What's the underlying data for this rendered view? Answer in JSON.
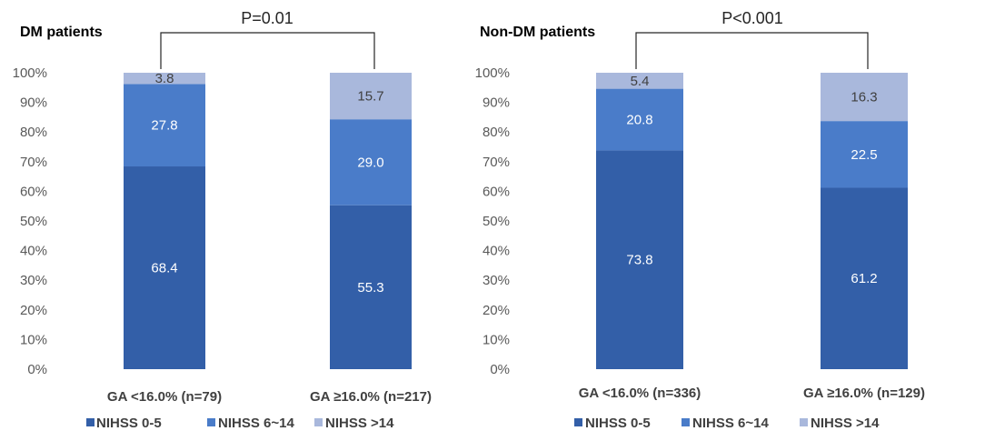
{
  "chart_data": [
    {
      "type": "bar",
      "stacked": true,
      "title": "DM patients",
      "annotation": "P=0.01",
      "categories": [
        "GA <16.0% (n=79)",
        "GA ≥16.0% (n=217)"
      ],
      "series": [
        {
          "name": "NIHSS 0-5",
          "values": [
            68.4,
            55.3
          ],
          "color": "#335fa8"
        },
        {
          "name": "NIHSS 6~14",
          "values": [
            27.8,
            29.0
          ],
          "color": "#4a7cc9"
        },
        {
          "name": "NIHSS >14",
          "values": [
            3.8,
            15.7
          ],
          "color": "#a9b8dc"
        }
      ],
      "ylim": [
        0,
        100
      ],
      "yticks": [
        "0%",
        "10%",
        "20%",
        "30%",
        "40%",
        "50%",
        "60%",
        "70%",
        "80%",
        "90%",
        "100%"
      ],
      "legend_position": "bottom"
    },
    {
      "type": "bar",
      "stacked": true,
      "title": "Non-DM patients",
      "annotation": "P<0.001",
      "categories": [
        "GA <16.0% (n=336)",
        "GA ≥16.0% (n=129)"
      ],
      "series": [
        {
          "name": "NIHSS 0-5",
          "values": [
            73.8,
            61.2
          ],
          "color": "#335fa8"
        },
        {
          "name": "NIHSS 6~14",
          "values": [
            20.8,
            22.5
          ],
          "color": "#4a7cc9"
        },
        {
          "name": "NIHSS >14",
          "values": [
            5.4,
            16.3
          ],
          "color": "#a9b8dc"
        }
      ],
      "ylim": [
        0,
        100
      ],
      "yticks": [
        "0%",
        "10%",
        "20%",
        "30%",
        "40%",
        "50%",
        "60%",
        "70%",
        "80%",
        "90%",
        "100%"
      ],
      "legend_position": "bottom"
    }
  ]
}
